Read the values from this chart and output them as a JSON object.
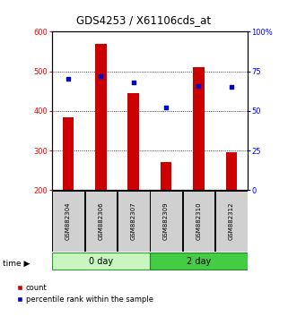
{
  "title": "GDS4253 / X61106cds_at",
  "samples": [
    "GSM882304",
    "GSM882306",
    "GSM882307",
    "GSM882309",
    "GSM882310",
    "GSM882312"
  ],
  "count_values": [
    385,
    570,
    445,
    270,
    510,
    295
  ],
  "percentile_values": [
    70,
    72,
    68,
    52,
    66,
    65
  ],
  "ylim_left": [
    200,
    600
  ],
  "ylim_right": [
    0,
    100
  ],
  "yticks_left": [
    200,
    300,
    400,
    500,
    600
  ],
  "yticks_right": [
    0,
    25,
    50,
    75,
    100
  ],
  "ytick_labels_right": [
    "0",
    "25",
    "50",
    "75",
    "100%"
  ],
  "bar_color": "#cc0000",
  "dot_color": "#0000cc",
  "bar_bottom": 200,
  "group0_color": "#c8f5c0",
  "group1_color": "#44cc44",
  "sample_box_color": "#d0d0d0",
  "legend_red_label": "count",
  "legend_blue_label": "percentile rank within the sample",
  "bar_width": 0.35
}
